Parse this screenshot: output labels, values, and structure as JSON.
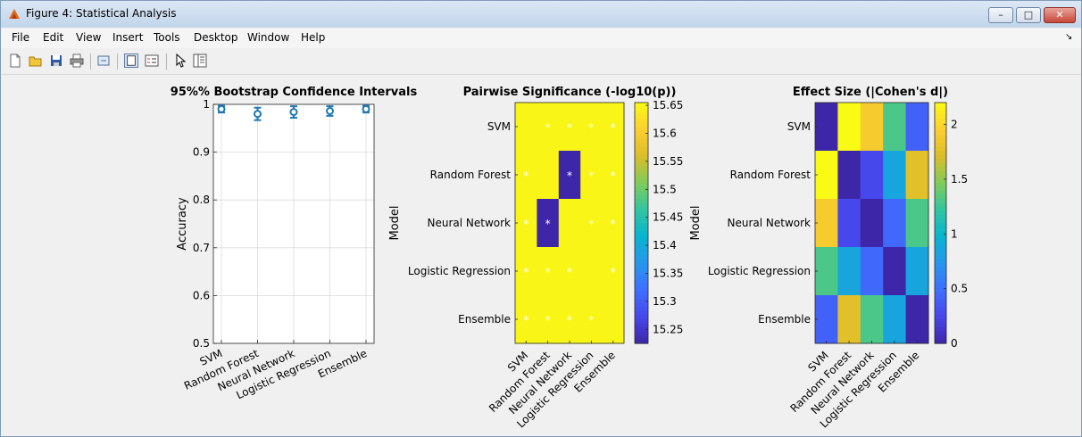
{
  "window": {
    "title": "Figure 4: Statistical Analysis",
    "minimize_glyph": "–",
    "maximize_glyph": "□",
    "close_glyph": "✕"
  },
  "menu": {
    "items": [
      "File",
      "Edit",
      "View",
      "Insert",
      "Tools",
      "Desktop",
      "Window",
      "Help"
    ],
    "overflow_glyph": "↘"
  },
  "toolbar": {
    "icons": [
      "new-figure-icon",
      "open-file-icon",
      "save-icon",
      "print-icon",
      "link-icon",
      "dock-icon",
      "legend-icon",
      "pointer-icon",
      "property-editor-icon"
    ]
  },
  "colors": {
    "series": "#1f77b4",
    "sig_marker": "#ffffff"
  },
  "chart_data": [
    {
      "type": "scatter",
      "title": "95%% Bootstrap Confidence Intervals",
      "xlabel": "",
      "ylabel": "Accuracy",
      "categories": [
        "SVM",
        "Random Forest",
        "Neural Network",
        "Logistic Regression",
        "Ensemble"
      ],
      "values": [
        0.99,
        0.98,
        0.984,
        0.986,
        0.99
      ],
      "ci_low": [
        0.983,
        0.967,
        0.972,
        0.976,
        0.983
      ],
      "ci_high": [
        0.997,
        0.993,
        0.996,
        0.996,
        0.997
      ],
      "ylim": [
        0.5,
        1
      ],
      "yticks": [
        0.5,
        0.6,
        0.7,
        0.8,
        0.9,
        1
      ],
      "ytick_labels": [
        "0.5",
        "0.6",
        "0.7",
        "0.8",
        "0.9",
        "1"
      ],
      "grid": true
    },
    {
      "type": "heatmap",
      "title": "Pairwise Significance (-log10(p))",
      "xlabel": "",
      "ylabel": "Model",
      "x": [
        "SVM",
        "Random Forest",
        "Neural Network",
        "Logistic Regression",
        "Ensemble"
      ],
      "y": [
        "SVM",
        "Random Forest",
        "Neural Network",
        "Logistic Regression",
        "Ensemble"
      ],
      "values": [
        [
          15.65,
          15.65,
          15.65,
          15.65,
          15.65
        ],
        [
          15.65,
          15.65,
          15.22,
          15.65,
          15.65
        ],
        [
          15.65,
          15.22,
          15.65,
          15.65,
          15.65
        ],
        [
          15.65,
          15.65,
          15.65,
          15.65,
          15.65
        ],
        [
          15.65,
          15.65,
          15.65,
          15.65,
          15.65
        ]
      ],
      "significance_markers": [
        [
          0,
          1,
          1,
          1,
          1
        ],
        [
          1,
          0,
          1,
          1,
          1
        ],
        [
          1,
          1,
          0,
          1,
          1
        ],
        [
          1,
          1,
          1,
          0,
          1
        ],
        [
          1,
          1,
          1,
          1,
          0
        ]
      ],
      "marker": "*",
      "colorbar": {
        "range": [
          15.225,
          15.655
        ],
        "ticks": [
          15.25,
          15.3,
          15.35,
          15.4,
          15.45,
          15.5,
          15.55,
          15.6,
          15.65
        ],
        "tick_labels": [
          "15.25",
          "15.3",
          "15.35",
          "15.4",
          "15.45",
          "15.5",
          "15.55",
          "15.6",
          "15.65"
        ]
      }
    },
    {
      "type": "heatmap",
      "title": "Effect Size (|Cohen's d|)",
      "xlabel": "",
      "ylabel": "Model",
      "x": [
        "SVM",
        "Random Forest",
        "Neural Network",
        "Logistic Regression",
        "Ensemble"
      ],
      "y": [
        "SVM",
        "Random Forest",
        "Neural Network",
        "Logistic Regression",
        "Ensemble"
      ],
      "values": [
        [
          0.0,
          2.2,
          1.9,
          1.3,
          0.4
        ],
        [
          2.2,
          0.0,
          0.25,
          0.85,
          1.75
        ],
        [
          1.9,
          0.25,
          0.0,
          0.45,
          1.3
        ],
        [
          1.3,
          0.85,
          0.45,
          0.0,
          0.85
        ],
        [
          0.4,
          1.75,
          1.3,
          0.85,
          0.0
        ]
      ],
      "colorbar": {
        "range": [
          0,
          2.2
        ],
        "ticks": [
          0,
          0.5,
          1,
          1.5,
          2
        ],
        "tick_labels": [
          "0",
          "0.5",
          "1",
          "1.5",
          "2"
        ]
      }
    }
  ]
}
